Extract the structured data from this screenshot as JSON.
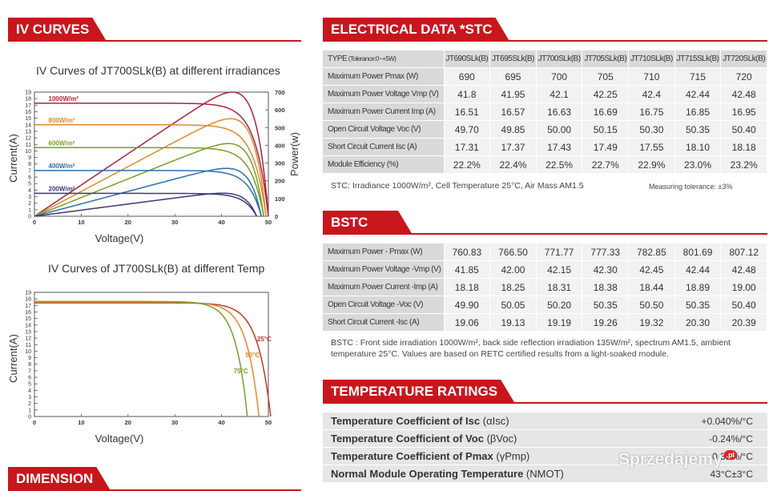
{
  "iv_header": "IV CURVES",
  "elec_header": "ELECTRICAL DATA *STC",
  "bstc_header": "BSTC",
  "temp_header": "TEMPERATURE RATINGS",
  "dim_header": "DIMENSION",
  "chart_data": [
    {
      "type": "line",
      "title": "IV Curves of JT700SLk(B) at different irradiances",
      "xlabel": "Voltage(V)",
      "ylabel": "Current(A)",
      "y2label": "Power(w)",
      "xlim": [
        0,
        50
      ],
      "ylim": [
        0,
        19
      ],
      "y2lim": [
        0,
        700
      ],
      "xticks": [
        0,
        10,
        20,
        30,
        40,
        50
      ],
      "yticks": [
        0,
        1,
        2,
        3,
        4,
        5,
        6,
        7,
        8,
        9,
        10,
        11,
        12,
        13,
        14,
        15,
        16,
        17,
        18,
        19
      ],
      "y2ticks": [
        0,
        100,
        200,
        300,
        400,
        500,
        600,
        700
      ],
      "series": [
        {
          "name": "1000W/m²",
          "color": "#a8253b",
          "isc": 17.3,
          "voc": 50,
          "vmp": 42.1,
          "imp": 16.6,
          "pmax": 700
        },
        {
          "name": "800W/m²",
          "color": "#e2892b",
          "isc": 14.0,
          "voc": 49.5,
          "vmp": 42,
          "imp": 13.1,
          "pmax": 550
        },
        {
          "name": "600W/m²",
          "color": "#7a9e28",
          "isc": 10.5,
          "voc": 49,
          "vmp": 41.5,
          "imp": 9.9,
          "pmax": 410
        },
        {
          "name": "400W/m²",
          "color": "#2e6fa8",
          "isc": 7.0,
          "voc": 48.5,
          "vmp": 41,
          "imp": 6.6,
          "pmax": 270
        },
        {
          "name": "200W/m²",
          "color": "#3b3a7a",
          "isc": 3.5,
          "voc": 47.5,
          "vmp": 40,
          "imp": 3.3,
          "pmax": 130
        }
      ]
    },
    {
      "type": "line",
      "title": "IV Curves of JT700SLk(B) at different Temp",
      "xlabel": "Voltage(V)",
      "ylabel": "Current(A)",
      "xlim": [
        0,
        50
      ],
      "ylim": [
        0,
        19
      ],
      "xticks": [
        0,
        10,
        20,
        30,
        40,
        50
      ],
      "yticks": [
        0,
        1,
        2,
        3,
        4,
        5,
        6,
        7,
        8,
        9,
        10,
        11,
        12,
        13,
        14,
        15,
        16,
        17,
        18,
        19
      ],
      "series": [
        {
          "name": "25°C",
          "color": "#c0392b",
          "isc": 17.4,
          "voc": 50.5
        },
        {
          "name": "50°C",
          "color": "#e2892b",
          "isc": 17.5,
          "voc": 48
        },
        {
          "name": "75°C",
          "color": "#7a9e28",
          "isc": 17.6,
          "voc": 45.5
        }
      ]
    }
  ],
  "stc_table": {
    "head_label": "TYPE",
    "head_sub": "(Tolerance:0~+5W)",
    "models": [
      "JT690SLk(B)",
      "JT695SLk(B)",
      "JT700SLk(B)",
      "JT705SLk(B)",
      "JT710SLk(B)",
      "JT715SLk(B)",
      "JT720SLk(B)"
    ],
    "rows": [
      {
        "label": "Maximum Power Pmax",
        "unit": "(W)",
        "values": [
          "690",
          "695",
          "700",
          "705",
          "710",
          "715",
          "720"
        ]
      },
      {
        "label": "Maximum Power Voltage Vmp",
        "unit": "(V)",
        "values": [
          "41.8",
          "41.95",
          "42.1",
          "42.25",
          "42.4",
          "42.44",
          "42.48"
        ]
      },
      {
        "label": "Maximum Power Current Imp",
        "unit": "(A)",
        "values": [
          "16.51",
          "16.57",
          "16.63",
          "16.69",
          "16.75",
          "16.85",
          "16.95"
        ]
      },
      {
        "label": "Open Circuit Voltage Voc",
        "unit": "(V)",
        "values": [
          "49.70",
          "49.85",
          "50.00",
          "50.15",
          "50.30",
          "50.35",
          "50.40"
        ]
      },
      {
        "label": "Short Circuit Current Isc",
        "unit": "(A)",
        "values": [
          "17.31",
          "17.37",
          "17.43",
          "17.49",
          "17.55",
          "18.10",
          "18.18"
        ]
      },
      {
        "label": "Module Efficiency",
        "unit": "(%)",
        "values": [
          "22.2%",
          "22.4%",
          "22.5%",
          "22.7%",
          "22.9%",
          "23.0%",
          "23.2%"
        ]
      }
    ],
    "note": "STC: Irradiance 1000W/m², Cell Temperature 25°C, Air Mass AM1.5",
    "tolerance": "Measuring tolerance: ±3%"
  },
  "bstc_table": {
    "rows": [
      {
        "label": "Maximum Power - Pmax",
        "unit": "(W)",
        "values": [
          "760.83",
          "766.50",
          "771.77",
          "777.33",
          "782.85",
          "801.69",
          "807.12"
        ]
      },
      {
        "label": "Maximum Power Voltage -Vmp",
        "unit": "(V)",
        "values": [
          "41.85",
          "42.00",
          "42.15",
          "42.30",
          "42.45",
          "42.44",
          "42.48"
        ]
      },
      {
        "label": "Maximum Power Current -Imp",
        "unit": "(A)",
        "values": [
          "18.18",
          "18.25",
          "18.31",
          "18.38",
          "18.44",
          "18.89",
          "19.00"
        ]
      },
      {
        "label": "Open Circuit Voltage -Voc",
        "unit": "(V)",
        "values": [
          "49.90",
          "50.05",
          "50.20",
          "50.35",
          "50.50",
          "50.35",
          "50.40"
        ]
      },
      {
        "label": "Short Circuit Current -Isc",
        "unit": "(A)",
        "values": [
          "19.06",
          "19.13",
          "19.19",
          "19.26",
          "19.32",
          "20.30",
          "20.39"
        ]
      }
    ],
    "note": "BSTC : Front side irradiation 1000W/m², back side reflection irradiation 135W/m², spectrum AM1.5, ambient temperature 25°C. Values are based on RETC certified results from a light-soaked module."
  },
  "temp_rows": [
    {
      "label": "Temperature Coefficient of Isc",
      "sym": "(αIsc)",
      "value": "+0.040%/°C"
    },
    {
      "label": "Temperature Coefficient of Voc",
      "sym": "(βVoc)",
      "value": "-0.24%/°C"
    },
    {
      "label": "Temperature Coefficient of Pmax",
      "sym": "(γPmp)",
      "value": "-0.31%/°C"
    },
    {
      "label": "Normal Module Operating Temperature",
      "sym": "(NMOT)",
      "value": "43°C±3°C"
    }
  ],
  "watermark": {
    "text": "Sprzedajemy",
    "badge": ".pl"
  }
}
